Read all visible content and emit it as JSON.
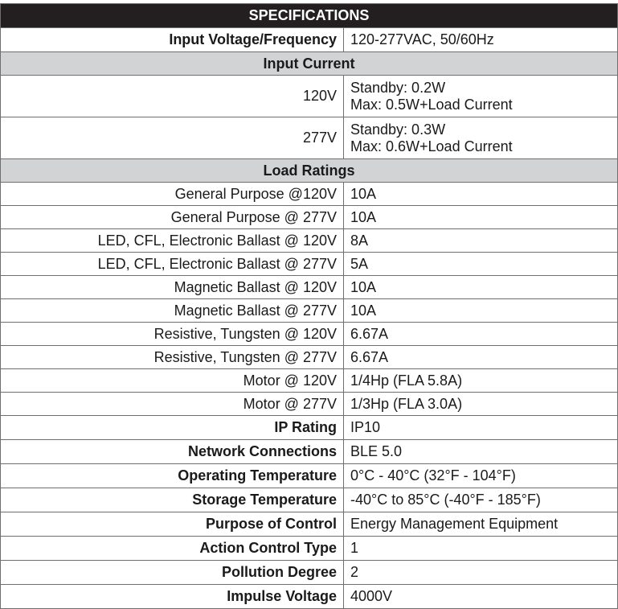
{
  "title": "SPECIFICATIONS",
  "input_voltage": {
    "label": "Input Voltage/Frequency",
    "value": "120-277VAC, 50/60Hz"
  },
  "input_current": {
    "section": "Input Current",
    "rows": [
      {
        "label": "120V",
        "line1": "Standby: 0.2W",
        "line2": "Max: 0.5W+Load Current"
      },
      {
        "label": "277V",
        "line1": "Standby: 0.3W",
        "line2": "Max: 0.6W+Load Current"
      }
    ]
  },
  "load_ratings": {
    "section": "Load Ratings",
    "rows": [
      {
        "label": "General Purpose @120V",
        "value": "10A"
      },
      {
        "label": "General Purpose @ 277V",
        "value": "10A"
      },
      {
        "label": "LED, CFL, Electronic Ballast @ 120V",
        "value": "8A"
      },
      {
        "label": "LED, CFL, Electronic Ballast @ 277V",
        "value": "5A"
      },
      {
        "label": "Magnetic Ballast @ 120V",
        "value": "10A"
      },
      {
        "label": "Magnetic Ballast @ 277V",
        "value": "10A"
      },
      {
        "label": "Resistive, Tungsten @ 120V",
        "value": "6.67A"
      },
      {
        "label": "Resistive, Tungsten @ 277V",
        "value": "6.67A"
      },
      {
        "label": "Motor @ 120V",
        "value": "1/4Hp (FLA 5.8A)"
      },
      {
        "label": "Motor @ 277V",
        "value": "1/3Hp (FLA 3.0A)"
      }
    ]
  },
  "other": [
    {
      "label": "IP Rating",
      "value": "IP10"
    },
    {
      "label": "Network Connections",
      "value": "BLE 5.0"
    },
    {
      "label": "Operating Temperature",
      "value": "0°C - 40°C (32°F - 104°F)"
    },
    {
      "label": "Storage Temperature",
      "value": "-40°C to 85°C (-40°F - 185°F)"
    },
    {
      "label": "Purpose of Control",
      "value": "Energy Management Equipment"
    },
    {
      "label": "Action Control Type",
      "value": "1"
    },
    {
      "label": "Pollution Degree",
      "value": "2"
    },
    {
      "label": "Impulse Voltage",
      "value": "4000V"
    }
  ]
}
